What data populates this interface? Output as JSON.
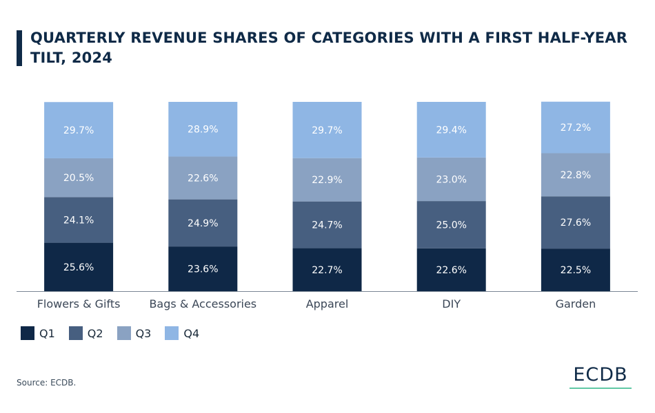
{
  "title": "QUARTERLY REVENUE SHARES OF CATEGORIES WITH A FIRST HALF-YEAR TILT, 2024",
  "source": "Source: ECDB.",
  "logo": "ECDB",
  "colors": {
    "Q1": "#0f2847",
    "Q2": "#475f80",
    "Q3": "#8aa2c2",
    "Q4": "#8fb6e4",
    "title": "#0f2a47",
    "logo_accent": "#5fc8a4"
  },
  "chart_data": {
    "type": "bar",
    "stacked": true,
    "title": "QUARTERLY REVENUE SHARES OF CATEGORIES WITH A FIRST HALF-YEAR TILT, 2024",
    "categories": [
      "Flowers & Gifts",
      "Bags & Accessories",
      "Apparel",
      "DIY",
      "Garden"
    ],
    "series": [
      {
        "name": "Q1",
        "values": [
          25.6,
          23.6,
          22.7,
          22.6,
          22.5
        ],
        "labels": [
          "25.6%",
          "23.6%",
          "22.7%",
          "22.6%",
          "22.5%"
        ]
      },
      {
        "name": "Q2",
        "values": [
          24.1,
          24.9,
          24.7,
          25.0,
          27.6
        ],
        "labels": [
          "24.1%",
          "24.9%",
          "24.7%",
          "25.0%",
          "27.6%"
        ]
      },
      {
        "name": "Q3",
        "values": [
          20.5,
          22.6,
          22.9,
          23.0,
          22.8
        ],
        "labels": [
          "20.5%",
          "22.6%",
          "22.9%",
          "23.0%",
          "22.8%"
        ]
      },
      {
        "name": "Q4",
        "values": [
          29.7,
          28.9,
          29.7,
          29.4,
          27.2
        ],
        "labels": [
          "29.7%",
          "28.9%",
          "29.7%",
          "29.4%",
          "27.2%"
        ]
      }
    ],
    "xlabel": "",
    "ylabel": "",
    "ylim": [
      0,
      100
    ],
    "grid": false,
    "legend_position": "bottom-left"
  }
}
